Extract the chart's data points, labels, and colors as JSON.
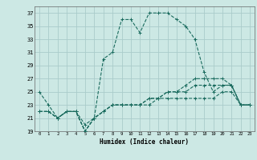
{
  "title": "",
  "xlabel": "Humidex (Indice chaleur)",
  "bg_color": "#cce8e4",
  "grid_color": "#aaccca",
  "line_color": "#1a6b5e",
  "xlim": [
    -0.5,
    23.5
  ],
  "ylim": [
    19,
    38
  ],
  "yticks": [
    19,
    21,
    23,
    25,
    27,
    29,
    31,
    33,
    35,
    37
  ],
  "xticks": [
    0,
    1,
    2,
    3,
    4,
    5,
    6,
    7,
    8,
    9,
    10,
    11,
    12,
    13,
    14,
    15,
    16,
    17,
    18,
    19,
    20,
    21,
    22,
    23
  ],
  "series": [
    {
      "x": [
        0,
        1,
        2,
        3,
        4,
        5,
        6,
        7,
        8,
        9,
        10,
        11,
        12,
        13,
        14,
        15,
        16,
        17,
        18,
        19,
        20,
        21,
        22,
        23
      ],
      "y": [
        25,
        23,
        21,
        22,
        22,
        20,
        21,
        30,
        31,
        36,
        36,
        34,
        37,
        37,
        37,
        36,
        35,
        33,
        28,
        25,
        26,
        26,
        23,
        23
      ]
    },
    {
      "x": [
        0,
        1,
        2,
        3,
        4,
        5,
        6,
        7,
        8,
        9,
        10,
        11,
        12,
        13,
        14,
        15,
        16,
        17,
        18,
        19,
        20,
        21,
        22,
        23
      ],
      "y": [
        22,
        22,
        21,
        22,
        22,
        19,
        21,
        22,
        23,
        23,
        23,
        23,
        23,
        24,
        24,
        24,
        24,
        24,
        24,
        24,
        25,
        25,
        23,
        23
      ]
    },
    {
      "x": [
        0,
        1,
        2,
        3,
        4,
        5,
        6,
        7,
        8,
        9,
        10,
        11,
        12,
        13,
        14,
        15,
        16,
        17,
        18,
        19,
        20,
        21,
        22,
        23
      ],
      "y": [
        22,
        22,
        21,
        22,
        22,
        19,
        21,
        22,
        23,
        23,
        23,
        23,
        24,
        24,
        25,
        25,
        25,
        26,
        26,
        26,
        26,
        26,
        23,
        23
      ]
    },
    {
      "x": [
        0,
        1,
        2,
        3,
        4,
        5,
        6,
        7,
        8,
        9,
        10,
        11,
        12,
        13,
        14,
        15,
        16,
        17,
        18,
        19,
        20,
        21,
        22,
        23
      ],
      "y": [
        22,
        22,
        21,
        22,
        22,
        19,
        21,
        22,
        23,
        23,
        23,
        23,
        24,
        24,
        25,
        25,
        26,
        27,
        27,
        27,
        27,
        26,
        23,
        23
      ]
    }
  ]
}
